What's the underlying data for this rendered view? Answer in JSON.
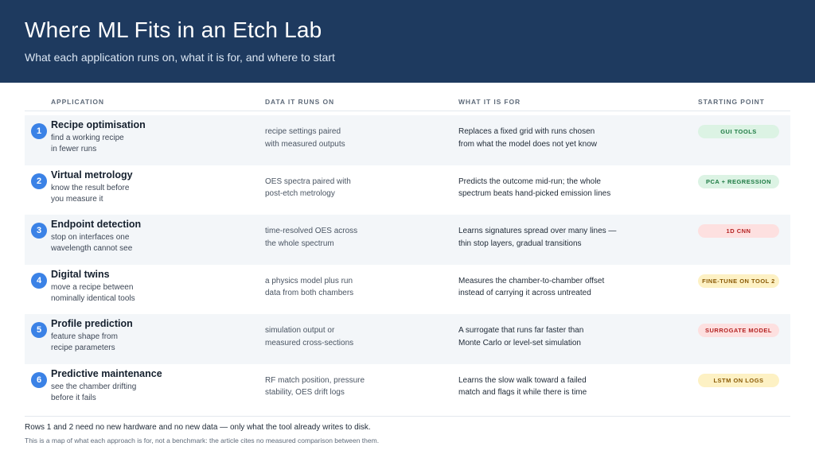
{
  "header": {
    "title": "Where ML Fits in an Etch Lab",
    "subtitle": "What each application runs on, what it is for, and where to start"
  },
  "columns": {
    "application": "APPLICATION",
    "data": "DATA IT RUNS ON",
    "what": "WHAT IT IS FOR",
    "start": "STARTING POINT"
  },
  "rows": [
    {
      "num": "1",
      "title": "Recipe optimisation",
      "desc": [
        "find a working recipe",
        "in fewer runs"
      ],
      "data": [
        "recipe settings paired",
        "with measured outputs"
      ],
      "what": [
        "Replaces a fixed grid with runs chosen",
        "from what the model does not yet know"
      ],
      "badge": "GUI TOOLS",
      "badge_color": "green"
    },
    {
      "num": "2",
      "title": "Virtual metrology",
      "desc": [
        "know the result before",
        "you measure it"
      ],
      "data": [
        "OES spectra paired with",
        "post-etch metrology"
      ],
      "what": [
        "Predicts the outcome mid-run; the whole",
        "spectrum beats hand-picked emission lines"
      ],
      "badge": "PCA + REGRESSION",
      "badge_color": "green"
    },
    {
      "num": "3",
      "title": "Endpoint detection",
      "desc": [
        "stop on interfaces one",
        "wavelength cannot see"
      ],
      "data": [
        "time-resolved OES across",
        "the whole spectrum"
      ],
      "what": [
        "Learns signatures spread over many lines —",
        "thin stop layers, gradual transitions"
      ],
      "badge": "1D CNN",
      "badge_color": "red"
    },
    {
      "num": "4",
      "title": "Digital twins",
      "desc": [
        "move a recipe between",
        "nominally identical tools"
      ],
      "data": [
        "a physics model plus run",
        "data from both chambers"
      ],
      "what": [
        "Measures the chamber-to-chamber offset",
        "instead of carrying it across untreated"
      ],
      "badge": "FINE-TUNE ON TOOL 2",
      "badge_color": "yellow"
    },
    {
      "num": "5",
      "title": "Profile prediction",
      "desc": [
        "feature shape from",
        "recipe parameters"
      ],
      "data": [
        "simulation output or",
        "measured cross-sections"
      ],
      "what": [
        "A surrogate that runs far faster than",
        "Monte Carlo or level-set simulation"
      ],
      "badge": "SURROGATE MODEL",
      "badge_color": "red"
    },
    {
      "num": "6",
      "title": "Predictive maintenance",
      "desc": [
        "see the chamber drifting",
        "before it fails"
      ],
      "data": [
        "RF match position, pressure",
        "stability, OES drift logs"
      ],
      "what": [
        "Learns the slow walk toward a failed",
        "match and flags it while there is time"
      ],
      "badge": "LSTM ON LOGS",
      "badge_color": "yellow"
    }
  ],
  "footer": {
    "note1": "Rows 1 and 2 need no new hardware and no new data — only what the tool already writes to disk.",
    "note2": "This is a map of what each approach is for, not a benchmark: the article cites no measured comparison between them."
  },
  "colors": {
    "header_bg": "#1e3a5f",
    "accent": "#3b82e6",
    "badge_green": "#dcf3e4",
    "badge_red": "#fde0e0",
    "badge_yellow": "#fdf1c4"
  }
}
